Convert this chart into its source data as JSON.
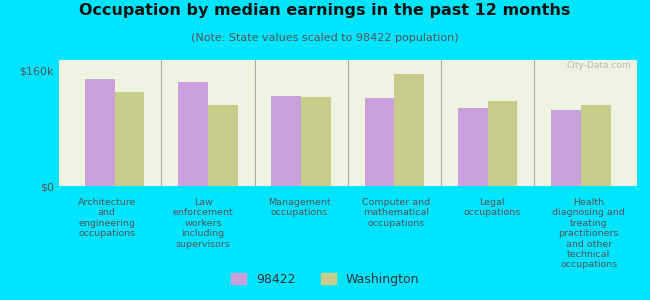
{
  "title": "Occupation by median earnings in the past 12 months",
  "subtitle": "(Note: State values scaled to 98422 population)",
  "background_color": "#00e5ff",
  "plot_bg_color": "#eef2e0",
  "categories": [
    "Architecture\nand\nengineering\noccupations",
    "Law\nenforcement\nworkers\nincluding\nsupervisors",
    "Management\noccupations",
    "Computer and\nmathematical\noccupations",
    "Legal\noccupations",
    "Health\ndiagnosing and\ntreating\npractitioners\nand other\ntechnical\noccupations"
  ],
  "values_98422": [
    148000,
    145000,
    125000,
    122000,
    108000,
    105000
  ],
  "values_washington": [
    130000,
    112000,
    123000,
    155000,
    118000,
    112000
  ],
  "color_98422": "#c9a0dc",
  "color_washington": "#c8cc8a",
  "ylim": [
    0,
    175000
  ],
  "yticks": [
    0,
    160000
  ],
  "ytick_labels": [
    "$0",
    "$160k"
  ],
  "legend_labels": [
    "98422",
    "Washington"
  ],
  "watermark": "City-Data.com"
}
